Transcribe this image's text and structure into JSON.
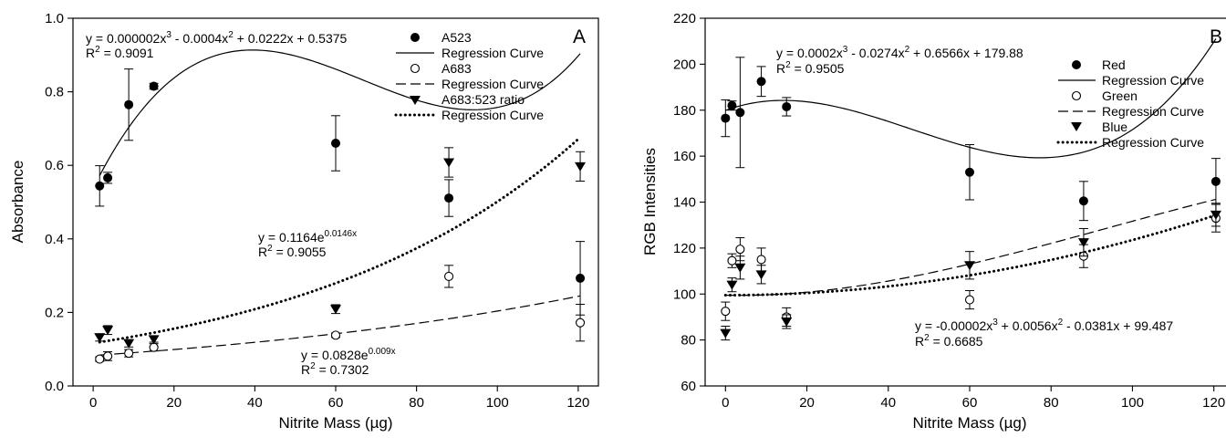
{
  "chart_data": [
    {
      "type": "scatter",
      "panel_label": "A",
      "xlabel": "Nitrite Mass (µg)",
      "ylabel": "Absorbance",
      "xlim": [
        -5,
        125
      ],
      "ylim": [
        0,
        1.0
      ],
      "xticks": [
        0,
        20,
        40,
        60,
        80,
        100,
        120
      ],
      "yticks": [
        0.0,
        0.2,
        0.4,
        0.6,
        0.8,
        1.0
      ],
      "ytick_labels": [
        "0.0",
        "0.2",
        "0.4",
        "0.6",
        "0.8",
        "1.0"
      ],
      "legend_position": "top-right",
      "series": [
        {
          "name": "A523",
          "marker": "filled-circle",
          "x": [
            1.6,
            3.6,
            8.8,
            15,
            60,
            88,
            120.5
          ],
          "y": [
            0.544,
            0.566,
            0.765,
            0.815,
            0.66,
            0.511,
            0.293
          ],
          "err": [
            0.055,
            0.015,
            0.097,
            0.008,
            0.075,
            0.05,
            0.1
          ]
        },
        {
          "name": "Regression Curve",
          "style": "solid",
          "fit": "cubic",
          "coefficients": [
            0.5375,
            0.0222,
            -0.0004,
            2e-06
          ],
          "x_range": [
            1.6,
            120.5
          ]
        },
        {
          "name": "A683",
          "marker": "open-circle",
          "x": [
            1.6,
            3.6,
            8.8,
            15,
            60,
            88,
            120.5
          ],
          "y": [
            0.073,
            0.081,
            0.089,
            0.105,
            0.138,
            0.298,
            0.172
          ],
          "err": [
            0.006,
            0.012,
            0.01,
            0.01,
            0.006,
            0.03,
            0.05
          ]
        },
        {
          "name": "Regression Curve",
          "style": "dashed",
          "fit": "exponential",
          "a": 0.0828,
          "b": 0.009,
          "x_range": [
            1.6,
            120.5
          ]
        },
        {
          "name": "A683:523 ratio",
          "marker": "filled-triangle-down",
          "x": [
            1.6,
            3.6,
            8.8,
            15,
            60,
            88,
            120.5
          ],
          "y": [
            0.132,
            0.152,
            0.116,
            0.127,
            0.209,
            0.608,
            0.597
          ],
          "err": [
            0.01,
            0.012,
            0.01,
            0.008,
            0.012,
            0.04,
            0.04
          ]
        },
        {
          "name": "Regression Curve",
          "style": "dotted",
          "fit": "exponential",
          "a": 0.1164,
          "b": 0.0146,
          "x_range": [
            1.6,
            120.5
          ]
        }
      ],
      "annotations": [
        {
          "eq_prefix": "y = 0.000002x",
          "s1": "3",
          "eq_mid": " - 0.0004x",
          "s2": "2",
          "eq_end": " + 0.0222x + 0.5375",
          "r2_pre": "R",
          "r2_sup": "2",
          "r2_val": " = 0.9091"
        },
        {
          "eq_prefix": "y = 0.1164e",
          "sup": "0.0146x",
          "r2_pre": "R",
          "r2_sup": "2",
          "r2_val": " = 0.9055"
        },
        {
          "eq_prefix": "y = 0.0828e",
          "sup": "0.009x",
          "r2_pre": "R",
          "r2_sup": "2",
          "r2_val": " = 0.7302"
        }
      ]
    },
    {
      "type": "scatter",
      "panel_label": "B",
      "xlabel": "Nitrite Mass (µg)",
      "ylabel": "RGB Intensities",
      "xlim": [
        -5,
        125
      ],
      "ylim": [
        60,
        220
      ],
      "xticks": [
        0,
        20,
        40,
        60,
        80,
        100,
        120
      ],
      "yticks": [
        60,
        80,
        100,
        120,
        140,
        160,
        180,
        200,
        220
      ],
      "legend_position": "top-right",
      "series": [
        {
          "name": "Red",
          "marker": "filled-circle",
          "x": [
            0,
            1.6,
            3.6,
            8.8,
            15,
            60,
            88,
            120.5
          ],
          "y": [
            176.5,
            182,
            179,
            192.5,
            181.5,
            153,
            140.5,
            149
          ],
          "err": [
            8,
            2,
            24,
            6.5,
            4,
            12,
            8.5,
            10
          ]
        },
        {
          "name": "Regression Curve",
          "style": "solid",
          "fit": "cubic",
          "coefficients": [
            179.88,
            0.6566,
            -0.0274,
            0.0002
          ],
          "x_range": [
            0,
            120.5
          ]
        },
        {
          "name": "Green",
          "marker": "open-circle",
          "x": [
            0,
            1.6,
            3.6,
            8.8,
            15,
            60,
            88,
            120.5
          ],
          "y": [
            92.5,
            114.5,
            119.5,
            115,
            90,
            97.5,
            116.5,
            133
          ],
          "err": [
            4,
            3,
            5,
            5,
            4,
            4,
            5,
            6
          ]
        },
        {
          "name": "Regression Curve",
          "style": "dashed",
          "fit": "cubic",
          "coefficients": [
            99.487,
            -0.0381,
            0.0056,
            -2e-05
          ],
          "x_range": [
            0,
            120.5
          ]
        },
        {
          "name": "Blue",
          "marker": "filled-triangle-down",
          "x": [
            0,
            1.6,
            3.6,
            8.8,
            15,
            60,
            88,
            120.5
          ],
          "y": [
            83,
            104,
            111.5,
            108.5,
            88,
            112.5,
            122.5,
            134.5
          ],
          "err": [
            3,
            3,
            5,
            4,
            3,
            6,
            6,
            5
          ]
        },
        {
          "name": "Regression Curve",
          "style": "dotted",
          "fit": "quadratic",
          "coefficients": [
            99.5,
            0,
            0.0024
          ],
          "x_range": [
            0,
            120.5
          ]
        }
      ],
      "annotations": [
        {
          "eq_prefix": "y = 0.0002x",
          "s1": "3",
          "eq_mid": " - 0.0274x",
          "s2": "2",
          "eq_end": " + 0.6566x + 179.88",
          "r2_pre": "R",
          "r2_sup": "2",
          "r2_val": " = 0.9505"
        },
        {
          "eq_prefix": "y = -0.00002x",
          "s1": "3",
          "eq_mid": " + 0.0056x",
          "s2": "2",
          "eq_end": " - 0.0381x + 99.487",
          "r2_pre": "R",
          "r2_sup": "2",
          "r2_val": " = 0.6685"
        }
      ]
    }
  ]
}
